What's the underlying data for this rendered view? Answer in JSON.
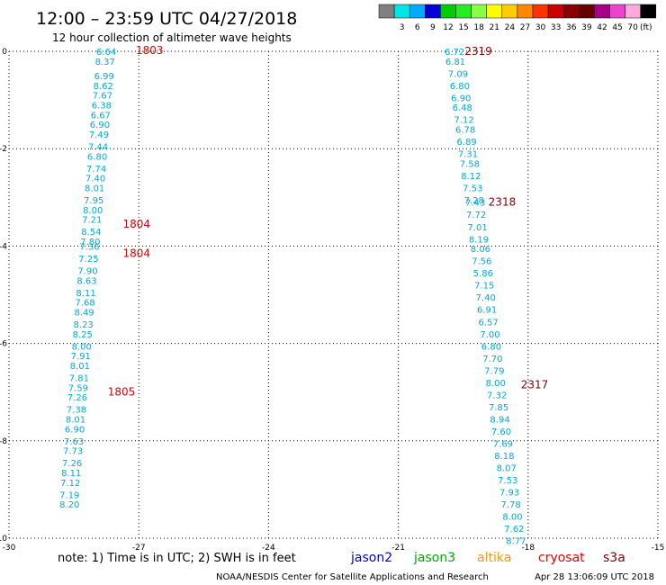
{
  "header": {
    "title": "12:00 – 23:59 UTC 04/27/2018",
    "subtitle": "12 hour collection of altimeter wave heights"
  },
  "colorbar": {
    "unit": "(ft)",
    "boxes": [
      {
        "color": "#808080",
        "label": ""
      },
      {
        "color": "#00e5e5",
        "label": "3"
      },
      {
        "color": "#00aaff",
        "label": "6"
      },
      {
        "color": "#0000dd",
        "label": "9"
      },
      {
        "color": "#00cc00",
        "label": "12"
      },
      {
        "color": "#22ee22",
        "label": "15"
      },
      {
        "color": "#88ff44",
        "label": "18"
      },
      {
        "color": "#ffff00",
        "label": "21"
      },
      {
        "color": "#ffcc00",
        "label": "24"
      },
      {
        "color": "#ff8800",
        "label": "27"
      },
      {
        "color": "#ff3300",
        "label": "30"
      },
      {
        "color": "#cc0000",
        "label": "33"
      },
      {
        "color": "#880000",
        "label": "36"
      },
      {
        "color": "#660000",
        "label": "39"
      },
      {
        "color": "#aa0088",
        "label": "42"
      },
      {
        "color": "#ee44cc",
        "label": "45"
      },
      {
        "color": "#ffaadd",
        "label": "70"
      },
      {
        "color": "#000000",
        "label": ""
      }
    ]
  },
  "footer": {
    "note": "note:  1) Time is in UTC;  2) SWH is in feet",
    "credit": "NOAA/NESDIS Center for Satellite Applications and Research",
    "timestamp": "Apr 28 13:06:09 UTC 2018",
    "satellites": [
      {
        "name": "jason2",
        "color": "#0000dd"
      },
      {
        "name": "jason3",
        "color": "#00aa00"
      },
      {
        "name": "altika",
        "color": "#ff9900"
      },
      {
        "name": "cryosat",
        "color": "#ee0000"
      },
      {
        "name": "s3a",
        "color": "#880000"
      }
    ]
  },
  "chart_data": {
    "type": "scatter",
    "xlim": [
      -30,
      -15
    ],
    "ylim": [
      -10,
      0
    ],
    "xticks": [
      -30,
      -27,
      -24,
      -21,
      -18,
      -15
    ],
    "yticks": [
      0,
      -2,
      -4,
      -6,
      -8,
      -10
    ],
    "grid": true,
    "value_color": "#00aadd",
    "tracks": [
      {
        "points": [
          {
            "lon": -27.75,
            "lat": 0.0,
            "swh": "6.64"
          },
          {
            "lon": -27.78,
            "lat": -0.2,
            "swh": "8.37"
          },
          {
            "lon": -27.8,
            "lat": -0.5,
            "swh": "6.99"
          },
          {
            "lon": -27.82,
            "lat": -0.7,
            "swh": "8.62"
          },
          {
            "lon": -27.84,
            "lat": -0.9,
            "swh": "7.67"
          },
          {
            "lon": -27.86,
            "lat": -1.1,
            "swh": "6.38"
          },
          {
            "lon": -27.88,
            "lat": -1.3,
            "swh": "6.67"
          },
          {
            "lon": -27.9,
            "lat": -1.5,
            "swh": "6.90"
          },
          {
            "lon": -27.92,
            "lat": -1.7,
            "swh": "7.49"
          },
          {
            "lon": -27.94,
            "lat": -1.95,
            "swh": "7.44"
          },
          {
            "lon": -27.96,
            "lat": -2.15,
            "swh": "6.80"
          },
          {
            "lon": -27.98,
            "lat": -2.4,
            "swh": "7.74"
          },
          {
            "lon": -28.0,
            "lat": -2.6,
            "swh": "7.40"
          },
          {
            "lon": -28.02,
            "lat": -2.8,
            "swh": "8.01"
          },
          {
            "lon": -28.04,
            "lat": -3.05,
            "swh": "7.95"
          },
          {
            "lon": -28.06,
            "lat": -3.25,
            "swh": "8.00"
          },
          {
            "lon": -28.08,
            "lat": -3.45,
            "swh": "7.21"
          },
          {
            "lon": -28.1,
            "lat": -3.7,
            "swh": "8.54"
          },
          {
            "lon": -28.12,
            "lat": -3.9,
            "swh": "7.80"
          },
          {
            "lon": -28.14,
            "lat": -4.0,
            "swh": "7.36"
          },
          {
            "lon": -28.16,
            "lat": -4.25,
            "swh": "7.25"
          },
          {
            "lon": -28.18,
            "lat": -4.5,
            "swh": "7.90"
          },
          {
            "lon": -28.2,
            "lat": -4.7,
            "swh": "8.63"
          },
          {
            "lon": -28.22,
            "lat": -4.95,
            "swh": "8.11"
          },
          {
            "lon": -28.24,
            "lat": -5.15,
            "swh": "7.68"
          },
          {
            "lon": -28.26,
            "lat": -5.35,
            "swh": "8.49"
          },
          {
            "lon": -28.28,
            "lat": -5.6,
            "swh": "8.23"
          },
          {
            "lon": -28.3,
            "lat": -5.8,
            "swh": "8.25"
          },
          {
            "lon": -28.32,
            "lat": -6.05,
            "swh": "8.00"
          },
          {
            "lon": -28.34,
            "lat": -6.25,
            "swh": "7.91"
          },
          {
            "lon": -28.36,
            "lat": -6.45,
            "swh": "8.01"
          },
          {
            "lon": -28.38,
            "lat": -6.7,
            "swh": "7.81"
          },
          {
            "lon": -28.4,
            "lat": -6.9,
            "swh": "7.59"
          },
          {
            "lon": -28.42,
            "lat": -7.1,
            "swh": "7.26"
          },
          {
            "lon": -28.44,
            "lat": -7.35,
            "swh": "7.38"
          },
          {
            "lon": -28.46,
            "lat": -7.55,
            "swh": "8.01"
          },
          {
            "lon": -28.48,
            "lat": -7.75,
            "swh": "6.90"
          },
          {
            "lon": -28.5,
            "lat": -8.0,
            "swh": "7.63"
          },
          {
            "lon": -28.52,
            "lat": -8.2,
            "swh": "7.73"
          },
          {
            "lon": -28.54,
            "lat": -8.45,
            "swh": "7.26"
          },
          {
            "lon": -28.56,
            "lat": -8.65,
            "swh": "8.11"
          },
          {
            "lon": -28.58,
            "lat": -8.85,
            "swh": "7.12"
          },
          {
            "lon": -28.6,
            "lat": -9.1,
            "swh": "7.19"
          },
          {
            "lon": -28.6,
            "lat": -9.3,
            "swh": "8.20"
          }
        ],
        "time_labels": [
          {
            "lon": -26.75,
            "lat": 0.02,
            "text": "1803",
            "color": "#dd0000"
          },
          {
            "lon": -27.05,
            "lat": -3.55,
            "text": "1804",
            "color": "#dd0000"
          },
          {
            "lon": -27.05,
            "lat": -4.15,
            "text": "1804",
            "color": "#dd0000"
          },
          {
            "lon": -27.4,
            "lat": -7.0,
            "text": "1805",
            "color": "#dd0000"
          }
        ]
      },
      {
        "points": [
          {
            "lon": -19.7,
            "lat": 0.0,
            "swh": "6.72"
          },
          {
            "lon": -19.68,
            "lat": -0.2,
            "swh": "6.81"
          },
          {
            "lon": -19.62,
            "lat": -0.45,
            "swh": "7.09"
          },
          {
            "lon": -19.58,
            "lat": -0.7,
            "swh": "6.80"
          },
          {
            "lon": -19.55,
            "lat": -0.95,
            "swh": "6.90"
          },
          {
            "lon": -19.52,
            "lat": -1.15,
            "swh": "6.48"
          },
          {
            "lon": -19.48,
            "lat": -1.4,
            "swh": "7.12"
          },
          {
            "lon": -19.45,
            "lat": -1.6,
            "swh": "6.78"
          },
          {
            "lon": -19.42,
            "lat": -1.85,
            "swh": "6.89"
          },
          {
            "lon": -19.39,
            "lat": -2.1,
            "swh": "7.31"
          },
          {
            "lon": -19.35,
            "lat": -2.3,
            "swh": "7.58"
          },
          {
            "lon": -19.32,
            "lat": -2.55,
            "swh": "8.12"
          },
          {
            "lon": -19.28,
            "lat": -2.8,
            "swh": "7.53"
          },
          {
            "lon": -19.25,
            "lat": -3.05,
            "swh": "7.28"
          },
          {
            "lon": -19.22,
            "lat": -3.1,
            "swh": "7.43"
          },
          {
            "lon": -19.2,
            "lat": -3.35,
            "swh": "7.72"
          },
          {
            "lon": -19.17,
            "lat": -3.6,
            "swh": "7.01"
          },
          {
            "lon": -19.14,
            "lat": -3.85,
            "swh": "8.19"
          },
          {
            "lon": -19.1,
            "lat": -4.05,
            "swh": "8.06"
          },
          {
            "lon": -19.07,
            "lat": -4.3,
            "swh": "7.56"
          },
          {
            "lon": -19.04,
            "lat": -4.55,
            "swh": "5.86"
          },
          {
            "lon": -19.01,
            "lat": -4.8,
            "swh": "7.15"
          },
          {
            "lon": -18.98,
            "lat": -5.05,
            "swh": "7.40"
          },
          {
            "lon": -18.95,
            "lat": -5.3,
            "swh": "6.91"
          },
          {
            "lon": -18.92,
            "lat": -5.55,
            "swh": "6.57"
          },
          {
            "lon": -18.88,
            "lat": -5.8,
            "swh": "7.00"
          },
          {
            "lon": -18.85,
            "lat": -6.05,
            "swh": "6.80"
          },
          {
            "lon": -18.82,
            "lat": -6.3,
            "swh": "7.70"
          },
          {
            "lon": -18.78,
            "lat": -6.55,
            "swh": "7.79"
          },
          {
            "lon": -18.75,
            "lat": -6.8,
            "swh": "8.00"
          },
          {
            "lon": -18.72,
            "lat": -7.05,
            "swh": "7.32"
          },
          {
            "lon": -18.68,
            "lat": -7.3,
            "swh": "7.85"
          },
          {
            "lon": -18.65,
            "lat": -7.55,
            "swh": "8.94"
          },
          {
            "lon": -18.62,
            "lat": -7.8,
            "swh": "7.60"
          },
          {
            "lon": -18.58,
            "lat": -8.05,
            "swh": "7.69"
          },
          {
            "lon": -18.55,
            "lat": -8.3,
            "swh": "8.18"
          },
          {
            "lon": -18.5,
            "lat": -8.55,
            "swh": "8.07"
          },
          {
            "lon": -18.47,
            "lat": -8.8,
            "swh": "7.53"
          },
          {
            "lon": -18.43,
            "lat": -9.05,
            "swh": "7.93"
          },
          {
            "lon": -18.4,
            "lat": -9.3,
            "swh": "7.78"
          },
          {
            "lon": -18.36,
            "lat": -9.55,
            "swh": "8.00"
          },
          {
            "lon": -18.32,
            "lat": -9.8,
            "swh": "7.62"
          },
          {
            "lon": -18.28,
            "lat": -10.05,
            "swh": "8.77"
          }
        ],
        "time_labels": [
          {
            "lon": -19.15,
            "lat": 0.0,
            "text": "2319",
            "color": "#880000"
          },
          {
            "lon": -18.6,
            "lat": -3.1,
            "text": "2318",
            "color": "#880000"
          },
          {
            "lon": -17.85,
            "lat": -6.85,
            "text": "2317",
            "color": "#880000"
          }
        ]
      }
    ]
  }
}
